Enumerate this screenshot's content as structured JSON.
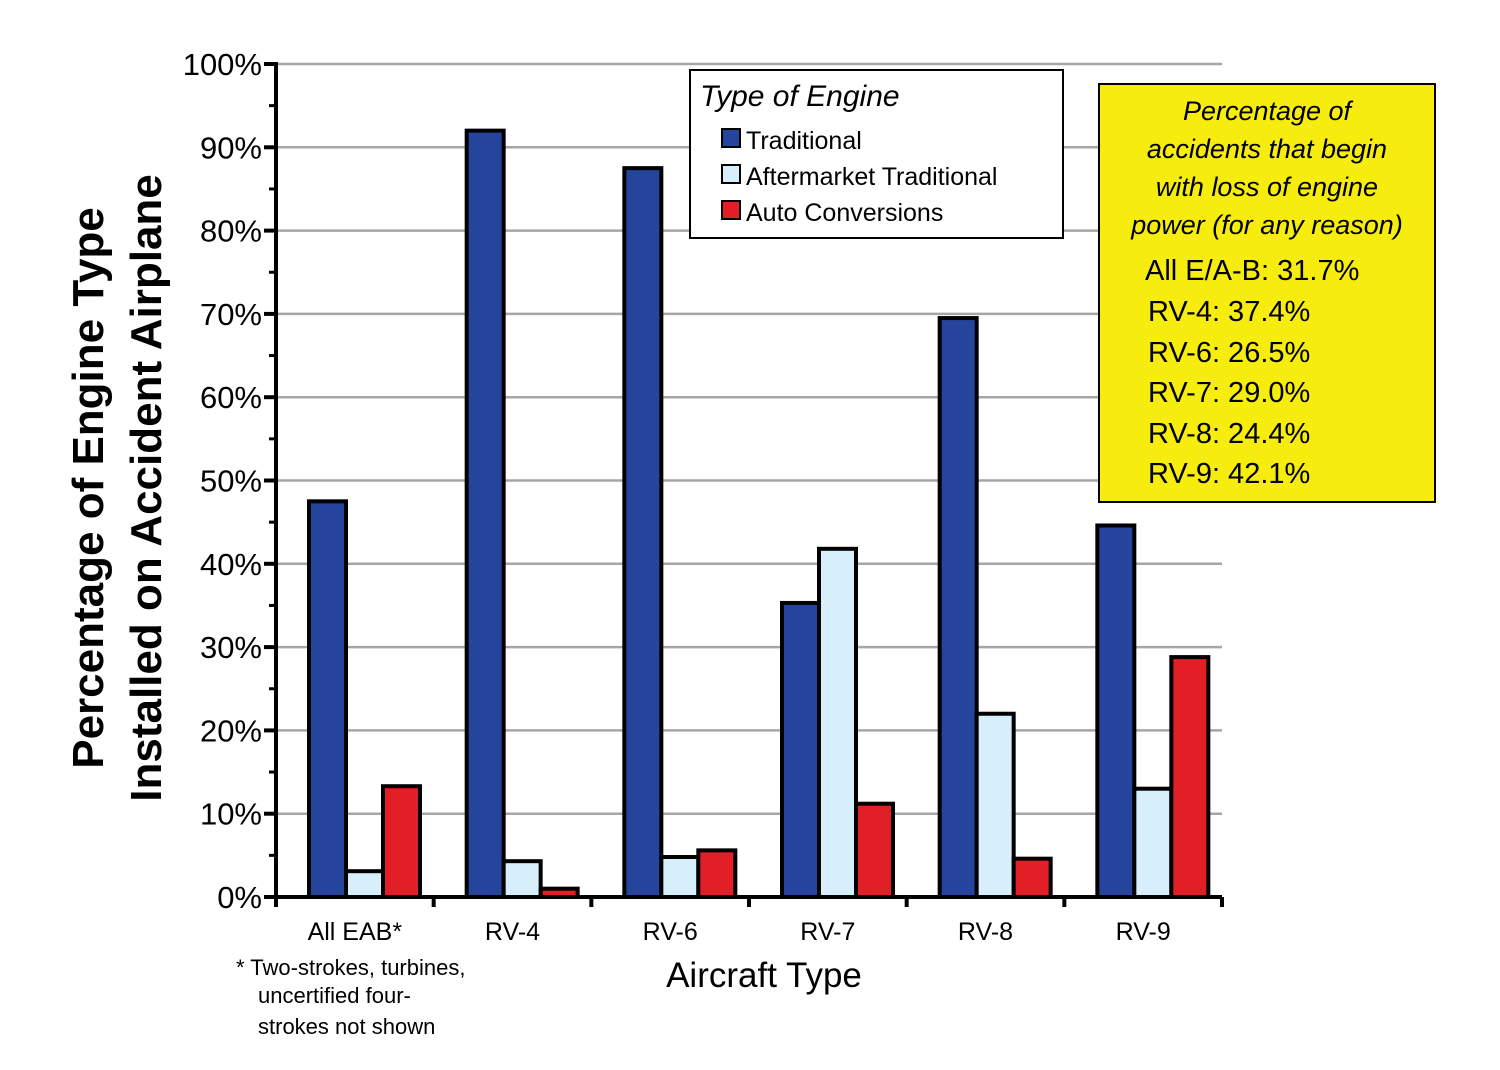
{
  "chart_data": {
    "type": "bar",
    "title": "",
    "ylabel_lines": [
      "Percentage of  Engine Type",
      "Installed on Accident Airplane"
    ],
    "xlabel": "Aircraft Type",
    "ylim": [
      0,
      100
    ],
    "y_ticks": [
      "0%",
      "10%",
      "20%",
      "30%",
      "40%",
      "50%",
      "60%",
      "70%",
      "80%",
      "90%",
      "100%"
    ],
    "grid": true,
    "categories": [
      "All EAB*",
      "RV-4",
      "RV-6",
      "RV-7",
      "RV-8",
      "RV-9"
    ],
    "series": [
      {
        "name": "Traditional",
        "color": "#25449b",
        "values": [
          47.5,
          92,
          87.5,
          35.3,
          69.5,
          44.6
        ]
      },
      {
        "name": "Aftermarket Traditional",
        "color": "#d6effa",
        "values": [
          3.1,
          4.3,
          4.8,
          41.8,
          22.0,
          13.0
        ]
      },
      {
        "name": "Auto Conversions",
        "color": "#e21f26",
        "values": [
          13.3,
          1.0,
          5.6,
          11.2,
          4.6,
          28.8
        ]
      }
    ],
    "legend": {
      "title": "Type of Engine",
      "position": "top-center"
    },
    "footnote": [
      "* Two-strokes, turbines,",
      "uncertified four-",
      "strokes not shown"
    ],
    "annotation": {
      "background": "#f6ec0e",
      "header": [
        "Percentage of",
        "accidents that begin",
        "with loss of engine",
        "power (for any reason)"
      ],
      "rows": [
        "All E/A-B: 31.7%",
        "RV-4: 37.4%",
        "RV-6: 26.5%",
        "RV-7: 29.0%",
        "RV-8: 24.4%",
        "RV-9: 42.1%"
      ]
    }
  }
}
